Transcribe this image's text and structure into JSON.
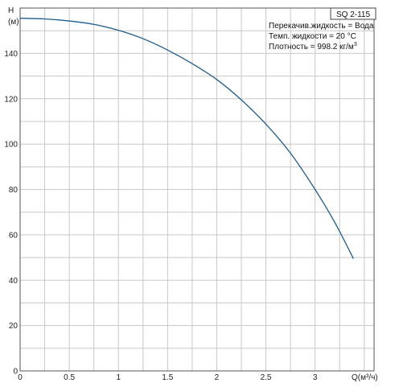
{
  "pump_label": "SQ 2-115",
  "info": {
    "liquid": "Перекачив.жидкость = Вода",
    "temp": "Темп. жидкости = 20 °C",
    "density_prefix": "Плотность = 998.2 кг/м",
    "density_exp": "3"
  },
  "axes": {
    "y_title_top": "H",
    "y_title_unit": "(м)",
    "x_title": "Q(м³/ч)"
  },
  "colors": {
    "curve": "#1f5c8c",
    "grid": "#c8c8c8",
    "frame": "#555555"
  },
  "chart_data": {
    "type": "line",
    "title": "",
    "xlabel": "Q(м³/ч)",
    "ylabel": "H (м)",
    "xlim": [
      0,
      3.6
    ],
    "ylim": [
      0,
      160
    ],
    "x_ticks": [
      0,
      0.5,
      1,
      1.5,
      2,
      2.5,
      3
    ],
    "x_tick_labels": [
      "0",
      "0.5",
      "1",
      "1.5",
      "2",
      "2.5",
      "3"
    ],
    "y_ticks": [
      0,
      20,
      40,
      60,
      80,
      100,
      120,
      140
    ],
    "y_tick_labels": [
      "0",
      "20",
      "40",
      "60",
      "80",
      "100",
      "120",
      "140"
    ],
    "grid": true,
    "series": [
      {
        "x": [
          0,
          0.25,
          0.5,
          0.75,
          1.0,
          1.25,
          1.5,
          1.75,
          2.0,
          2.25,
          2.5,
          2.75,
          3.0,
          3.2,
          3.39
        ],
        "y": [
          155.5,
          155.2,
          154.3,
          152.8,
          150.2,
          146.5,
          141.5,
          135.5,
          128.5,
          119.5,
          108.8,
          96.0,
          80.0,
          65.5,
          49.5
        ]
      }
    ]
  }
}
